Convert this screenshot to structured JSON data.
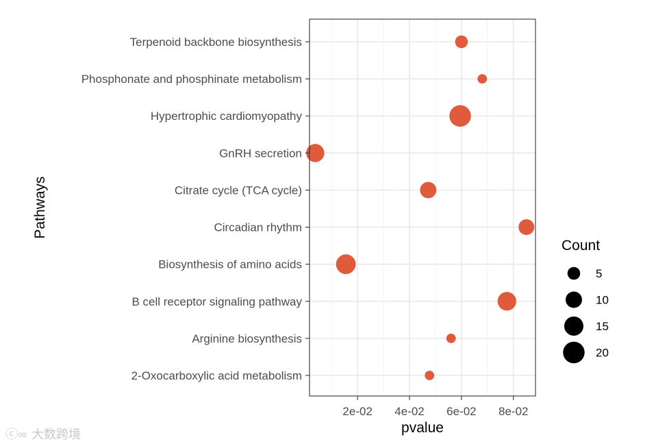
{
  "chart_data": {
    "type": "scatter",
    "xlabel": "pvalue",
    "ylabel": "Pathways",
    "xlim": [
      0.0015,
      0.0885
    ],
    "x_ticks": [
      {
        "value": 0.02,
        "label": "2e-02"
      },
      {
        "value": 0.04,
        "label": "4e-02"
      },
      {
        "value": 0.06,
        "label": "6e-02"
      },
      {
        "value": 0.08,
        "label": "8e-02"
      }
    ],
    "grid": true,
    "legend_position": "right",
    "point_color": "#e05a3c",
    "categories": [
      "2-Oxocarboxylic acid metabolism",
      "Arginine biosynthesis",
      "B cell receptor signaling pathway",
      "Biosynthesis of amino acids",
      "Circadian rhythm",
      "Citrate cycle (TCA cycle)",
      "GnRH secretion",
      "Hypertrophic cardiomyopathy",
      "Phosphonate and phosphinate metabolism",
      "Terpenoid backbone biosynthesis"
    ],
    "points": [
      {
        "pathway": "2-Oxocarboxylic acid metabolism",
        "pvalue": 0.0477,
        "count": 2
      },
      {
        "pathway": "Arginine biosynthesis",
        "pvalue": 0.056,
        "count": 2
      },
      {
        "pathway": "B cell receptor signaling pathway",
        "pvalue": 0.0775,
        "count": 14
      },
      {
        "pathway": "Biosynthesis of amino acids",
        "pvalue": 0.0155,
        "count": 16
      },
      {
        "pathway": "Circadian rhythm",
        "pvalue": 0.085,
        "count": 9
      },
      {
        "pathway": "Citrate cycle (TCA cycle)",
        "pvalue": 0.0472,
        "count": 10
      },
      {
        "pathway": "GnRH secretion",
        "pvalue": 0.0037,
        "count": 13
      },
      {
        "pathway": "Hypertrophic cardiomyopathy",
        "pvalue": 0.0595,
        "count": 20
      },
      {
        "pathway": "Phosphonate and phosphinate metabolism",
        "pvalue": 0.068,
        "count": 2
      },
      {
        "pathway": "Terpenoid backbone biosynthesis",
        "pvalue": 0.06,
        "count": 5
      }
    ],
    "size_legend": {
      "title": "Count",
      "breaks": [
        5,
        10,
        15,
        20
      ]
    }
  },
  "watermark": "大数跨境"
}
